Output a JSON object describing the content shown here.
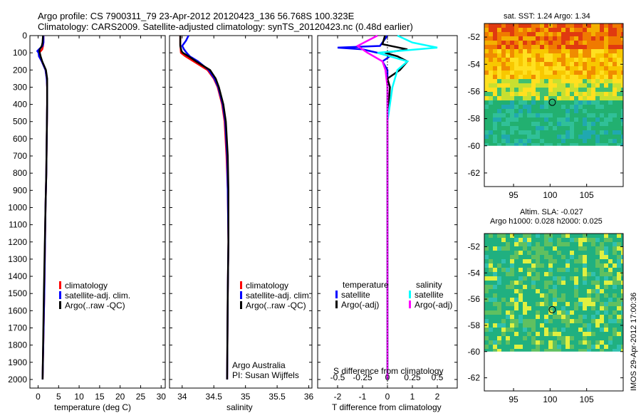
{
  "header": {
    "line1": "Argo profile: CS 7900311_79 23-Apr-2012 20120423_136 56.768S 100.323E",
    "line2": "Climatology: CARS2009. Satellite-adjusted climatology: synTS_20120423.nc (0.48d earlier)"
  },
  "chart_data": [
    {
      "type": "line",
      "xlabel": "temperature (deg C)",
      "xlim": [
        -2,
        31
      ],
      "xticks": [
        "0",
        "5",
        "10",
        "15",
        "20",
        "25",
        "30"
      ],
      "ylim": [
        0,
        2050
      ],
      "yticks": [
        "0",
        "100",
        "200",
        "300",
        "400",
        "500",
        "600",
        "700",
        "800",
        "900",
        "1000",
        "1100",
        "1200",
        "1300",
        "1400",
        "1500",
        "1600",
        "1700",
        "1800",
        "1900",
        "2000"
      ],
      "legend": [
        "climatology",
        "satellite-adj. clim.",
        "Argo(..raw -QC)"
      ],
      "series": [
        {
          "name": "climatology",
          "color": "#ff0000",
          "depth": [
            0,
            40,
            60,
            80,
            100,
            120,
            150,
            200,
            250,
            300,
            400,
            600,
            800,
            1000,
            1500,
            2000
          ],
          "values": [
            1.3,
            1.3,
            1.2,
            1.0,
            0.3,
            0.2,
            0.9,
            1.8,
            2.1,
            2.2,
            2.2,
            2.1,
            2.0,
            1.8,
            1.5,
            1.1
          ]
        },
        {
          "name": "satellite-adj. clim.",
          "color": "#0000ff",
          "depth": [
            0,
            40,
            60,
            80,
            90,
            100,
            120,
            150,
            200,
            250,
            300,
            400,
            600,
            800,
            1000,
            1500,
            2000
          ],
          "values": [
            1.3,
            1.3,
            1.1,
            0.2,
            -0.2,
            0.1,
            0.2,
            0.9,
            1.8,
            2.1,
            2.2,
            2.2,
            2.1,
            2.0,
            1.8,
            1.5,
            1.1
          ]
        },
        {
          "name": "Argo(..raw -QC)",
          "color": "#000000",
          "depth": [
            0,
            40,
            60,
            80,
            90,
            100,
            120,
            150,
            200,
            250,
            300,
            400,
            600,
            800,
            1000,
            1500,
            2000
          ],
          "values": [
            1.2,
            1.1,
            0.9,
            0.4,
            0.3,
            0.4,
            0.6,
            1.0,
            1.9,
            2.2,
            2.2,
            2.2,
            2.1,
            2.0,
            1.8,
            1.4,
            1.1
          ]
        }
      ]
    },
    {
      "type": "line",
      "xlabel": "salinity",
      "xlim": [
        33.8,
        36.05
      ],
      "xticks": [
        "34",
        "34.5",
        "35",
        "35.5",
        "36"
      ],
      "ylim": [
        0,
        2050
      ],
      "legend": [
        "climatology",
        "satellite-adj. clim.",
        "Argo(..raw -QC)"
      ],
      "series": [
        {
          "name": "climatology",
          "color": "#ff0000",
          "depth": [
            0,
            50,
            100,
            120,
            150,
            200,
            250,
            300,
            400,
            500,
            700,
            900,
            1200,
            1500,
            2000
          ],
          "values": [
            33.97,
            33.97,
            33.98,
            34.05,
            34.18,
            34.4,
            34.5,
            34.56,
            34.63,
            34.67,
            34.7,
            34.72,
            34.73,
            34.72,
            34.71
          ]
        },
        {
          "name": "satellite-adj. clim.",
          "color": "#0000ff",
          "depth": [
            0,
            30,
            60,
            80,
            100,
            120,
            150,
            200,
            250,
            300,
            400,
            500,
            700,
            900,
            1200,
            1500,
            2000
          ],
          "values": [
            34.1,
            34.06,
            34.0,
            34.03,
            34.07,
            34.12,
            34.25,
            34.42,
            34.51,
            34.57,
            34.64,
            34.68,
            34.71,
            34.72,
            34.73,
            34.72,
            34.71
          ]
        },
        {
          "name": "Argo(..raw -QC)",
          "color": "#000000",
          "depth": [
            0,
            60,
            90,
            100,
            120,
            150,
            200,
            250,
            300,
            400,
            500,
            700,
            900,
            1200,
            1500,
            2000
          ],
          "values": [
            33.97,
            33.97,
            33.99,
            34.01,
            34.1,
            34.22,
            34.44,
            34.53,
            34.58,
            34.65,
            34.69,
            34.72,
            34.73,
            34.73,
            34.72,
            34.71
          ]
        }
      ]
    },
    {
      "type": "line",
      "xlabel": "T difference from climatology",
      "xlabel2": "S difference from climatology",
      "xlim": [
        -2.8,
        2.8
      ],
      "xticks": [
        "-2",
        "-1",
        "0",
        "1",
        "2"
      ],
      "xticks2": [
        "-0.5",
        "-0.25",
        "0",
        "0.25",
        "0.5"
      ],
      "ylim": [
        0,
        2050
      ],
      "legend": {
        "temperature_title": "temperature",
        "salinity_title": "salinity",
        "temperature": [
          "satellite",
          "Argo(-adj)"
        ],
        "salinity": [
          "satellite",
          "Argo(-adj)"
        ]
      },
      "series": [
        {
          "name": "satellite",
          "group": "temperature",
          "color": "#0000ff",
          "depth": [
            0,
            60,
            70,
            80,
            100,
            120,
            150,
            200,
            300,
            500,
            1000,
            1500,
            2000
          ],
          "values": [
            0,
            -0.3,
            -2.0,
            -1.0,
            -0.4,
            0.1,
            -0.2,
            0.0,
            0.0,
            0.0,
            0.0,
            0.0,
            0.0
          ]
        },
        {
          "name": "Argo(-adj)",
          "group": "temperature",
          "color": "#000000",
          "depth": [
            0,
            50,
            80,
            100,
            120,
            150,
            200,
            250,
            300,
            500,
            1000,
            1500,
            2000
          ],
          "values": [
            -0.1,
            -0.2,
            0.8,
            -0.1,
            0.4,
            0.8,
            0.5,
            0.0,
            0.1,
            0.0,
            0.0,
            0.0,
            0.0
          ]
        },
        {
          "name": "satellite",
          "group": "salinity",
          "color": "#00ffff",
          "depth": [
            0,
            40,
            70,
            100,
            150,
            200,
            300,
            500,
            1000,
            1500,
            2000
          ],
          "values": [
            0.1,
            0.25,
            0.5,
            -0.1,
            0.2,
            0.1,
            0.05,
            0.0,
            0.0,
            0.0,
            0.0
          ]
        },
        {
          "name": "Argo(-adj)",
          "group": "salinity",
          "color": "#ff00ff",
          "depth": [
            0,
            60,
            100,
            150,
            200,
            300,
            500,
            1000,
            1500,
            2000
          ],
          "values": [
            -0.1,
            -0.3,
            -0.2,
            -0.05,
            -0.02,
            0.0,
            0.0,
            0.0,
            0.0,
            0.0
          ]
        }
      ]
    },
    {
      "type": "heatmap",
      "title": "sat. SST: 1.24 Argo: 1.34",
      "xticks": [
        "95",
        "100",
        "105"
      ],
      "yticks": [
        "-52",
        "-54",
        "-56",
        "-58",
        "-60",
        "-62"
      ],
      "xlim": [
        91,
        110
      ],
      "ylim": [
        -63,
        -51
      ],
      "data_region": {
        "lon": [
          91,
          110
        ],
        "lat": [
          -60,
          -51
        ]
      },
      "marker": {
        "lon": 100.3,
        "lat": -56.8
      },
      "colors": {
        "warm": "#d01010",
        "mid": "#ffd000",
        "cold": "#20a060"
      }
    },
    {
      "type": "heatmap",
      "title": "Altim. SLA: -0.027",
      "subtitle": "Argo h1000: 0.028 h2000: 0.025",
      "xticks": [
        "95",
        "100",
        "105"
      ],
      "yticks": [
        "-52",
        "-54",
        "-56",
        "-58",
        "-60",
        "-62"
      ],
      "xlim": [
        91,
        110
      ],
      "ylim": [
        -63,
        -51
      ],
      "data_region": {
        "lon": [
          91,
          110
        ],
        "lat": [
          -60,
          -51
        ]
      },
      "marker": {
        "lon": 100.3,
        "lat": -56.8
      },
      "colors": {
        "low": "#20b080",
        "high": "#e8f040"
      }
    }
  ],
  "depth_label": "",
  "credits": {
    "line1": "Argo Australia",
    "line2": "PI: Susan Wijffels"
  },
  "stamp": "IMOS 29-Apr-2012 17:00:36"
}
